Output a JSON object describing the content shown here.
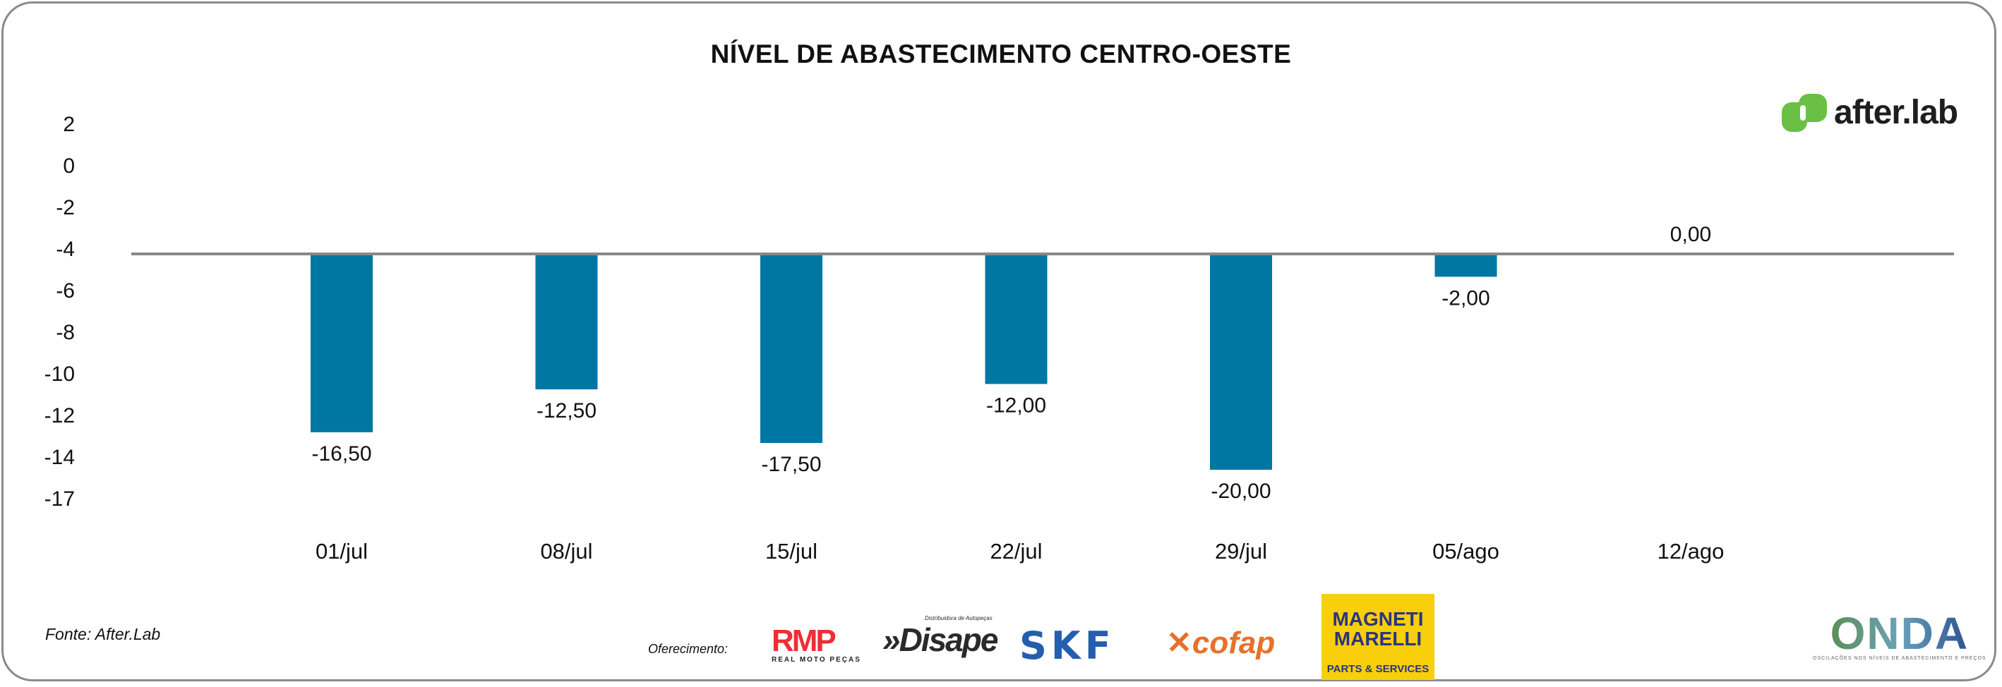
{
  "chart_data": {
    "type": "bar",
    "title": "NÍVEL DE ABASTECIMENTO CENTRO-OESTE",
    "categories": [
      "01/jul",
      "08/jul",
      "15/jul",
      "22/jul",
      "29/jul",
      "05/ago",
      "12/ago"
    ],
    "values": [
      -16.5,
      -12.5,
      -17.5,
      -12.0,
      -20.0,
      -2.0,
      0.0
    ],
    "value_labels": [
      "-16,50",
      "-12,50",
      "-17,50",
      "-12,00",
      "-20,00",
      "-2,00",
      "0,00"
    ],
    "y_ticks": [
      "2",
      "0",
      "-2",
      "-4",
      "-6",
      "-8",
      "-10",
      "-12",
      "-14",
      "-17"
    ],
    "xlabel": "",
    "ylabel": "",
    "grid": false,
    "bar_color": "#0077a3",
    "baseline_color": "#888888"
  },
  "footer": {
    "source": "Fonte: After.Lab",
    "sponsored_by": "Oferecimento:",
    "sponsors": {
      "rmp": "RMP",
      "rmp_sub": "REAL MOTO PEÇAS",
      "disape": "Disape",
      "disape_sub": "Distribuidora de Autopeças",
      "skf": "SKF",
      "cofap": "cofap",
      "magneti": "MAGNETI MARELLI",
      "magneti_sub": "PARTS & SERVICES"
    },
    "onda": "ONDA",
    "onda_sub": "OSCILAÇÕES NOS NÍVEIS DE ABASTECIMENTO E PREÇOS"
  },
  "brand": "after.lab",
  "brand_color": "#6abf45"
}
